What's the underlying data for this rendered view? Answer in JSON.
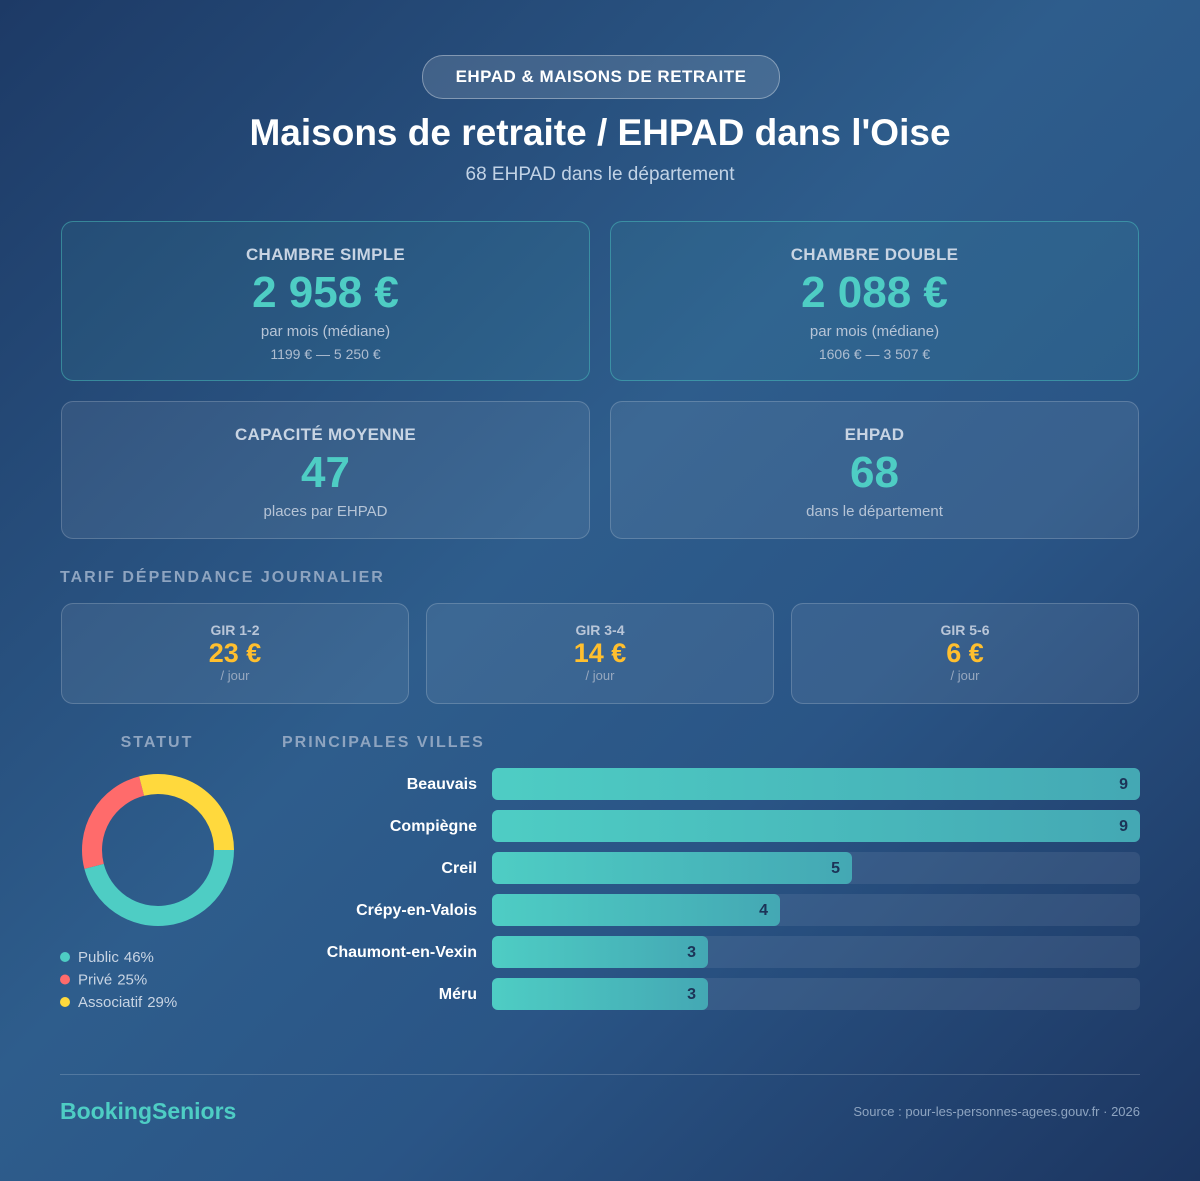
{
  "badge": "EHPAD & MAISONS DE RETRAITE",
  "title": "Maisons de retraite / EHPAD dans l'Oise",
  "subtitle": "68 EHPAD dans le département",
  "cards": [
    {
      "label": "CHAMBRE SIMPLE",
      "value": "2 958 €",
      "note": "par mois (médiane)",
      "range": "1199 € — 5 250 €"
    },
    {
      "label": "CHAMBRE DOUBLE",
      "value": "2 088 €",
      "note": "par mois (médiane)",
      "range": "1606 € — 3 507 €"
    },
    {
      "label": "CAPACITÉ MOYENNE",
      "value": "47",
      "note": "places par EHPAD"
    },
    {
      "label": "EHPAD",
      "value": "68",
      "note": "dans le département"
    }
  ],
  "tarif_title": "TARIF DÉPENDANCE JOURNALIER",
  "gir": [
    {
      "label": "GIR 1-2",
      "value": "23 €",
      "unit": "/ jour"
    },
    {
      "label": "GIR 3-4",
      "value": "14 €",
      "unit": "/ jour"
    },
    {
      "label": "GIR 5-6",
      "value": "6 €",
      "unit": "/ jour"
    }
  ],
  "chart_data": [
    {
      "type": "pie",
      "title": "STATUT",
      "categories": [
        "Public",
        "Privé",
        "Associatif"
      ],
      "values": [
        46,
        25,
        29
      ],
      "value_labels": [
        "46%",
        "25%",
        "29%"
      ],
      "colors": [
        "#4ecdc4",
        "#ff6b6b",
        "#ffd93d"
      ]
    },
    {
      "type": "bar",
      "title": "PRINCIPALES VILLES",
      "categories": [
        "Beauvais",
        "Compiègne",
        "Creil",
        "Crépy-en-Valois",
        "Chaumont-en-Vexin",
        "Méru"
      ],
      "values": [
        9,
        9,
        5,
        4,
        3,
        3
      ],
      "xlim": [
        0,
        9
      ],
      "color": "#4ecdc4"
    }
  ],
  "footer": {
    "brand": "BookingSeniors",
    "source": "Source : pour-les-personnes-agees.gouv.fr · 2026"
  }
}
